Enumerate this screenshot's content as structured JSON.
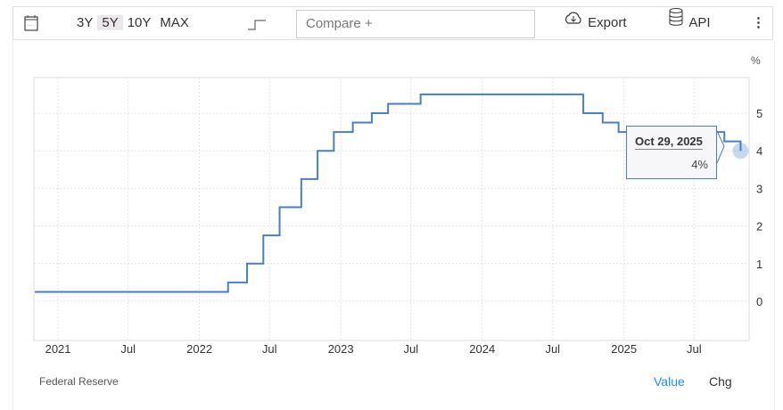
{
  "toolbar": {
    "ranges": [
      "3Y",
      "5Y",
      "10Y",
      "MAX"
    ],
    "active_range": "5Y",
    "compare_placeholder": "Compare +",
    "export_label": "Export",
    "api_label": "API"
  },
  "colors": {
    "line": "#4a7fc4",
    "active_tab": "#1a8cff"
  },
  "tooltip": {
    "date": "Oct 29, 2025",
    "value": "4%"
  },
  "footer": {
    "source": "Federal Reserve",
    "tabs": [
      "Value",
      "Chg"
    ],
    "active_tab": "Value"
  },
  "chart_data": {
    "type": "line",
    "step": true,
    "unit": "%",
    "grid": true,
    "ylim": [
      -1,
      6
    ],
    "yticks": [
      0,
      1,
      2,
      3,
      4,
      5
    ],
    "xlim": [
      "2020-11-02",
      "2025-11-20"
    ],
    "xtick_labels": [
      "2021",
      "Jul",
      "2022",
      "Jul",
      "2023",
      "Jul",
      "2024",
      "Jul",
      "2025",
      "Jul"
    ],
    "x": [
      "2020-11-02",
      "2022-03-16",
      "2022-05-04",
      "2022-06-15",
      "2022-07-27",
      "2022-09-21",
      "2022-11-02",
      "2022-12-14",
      "2023-02-01",
      "2023-03-22",
      "2023-05-03",
      "2023-07-26",
      "2024-09-18",
      "2024-11-07",
      "2024-12-18",
      "2025-09-17",
      "2025-10-29"
    ],
    "values": [
      0.25,
      0.5,
      1.0,
      1.75,
      2.5,
      3.25,
      4.0,
      4.5,
      4.75,
      5.0,
      5.25,
      5.5,
      5.0,
      4.75,
      4.5,
      4.25,
      4.0
    ]
  }
}
